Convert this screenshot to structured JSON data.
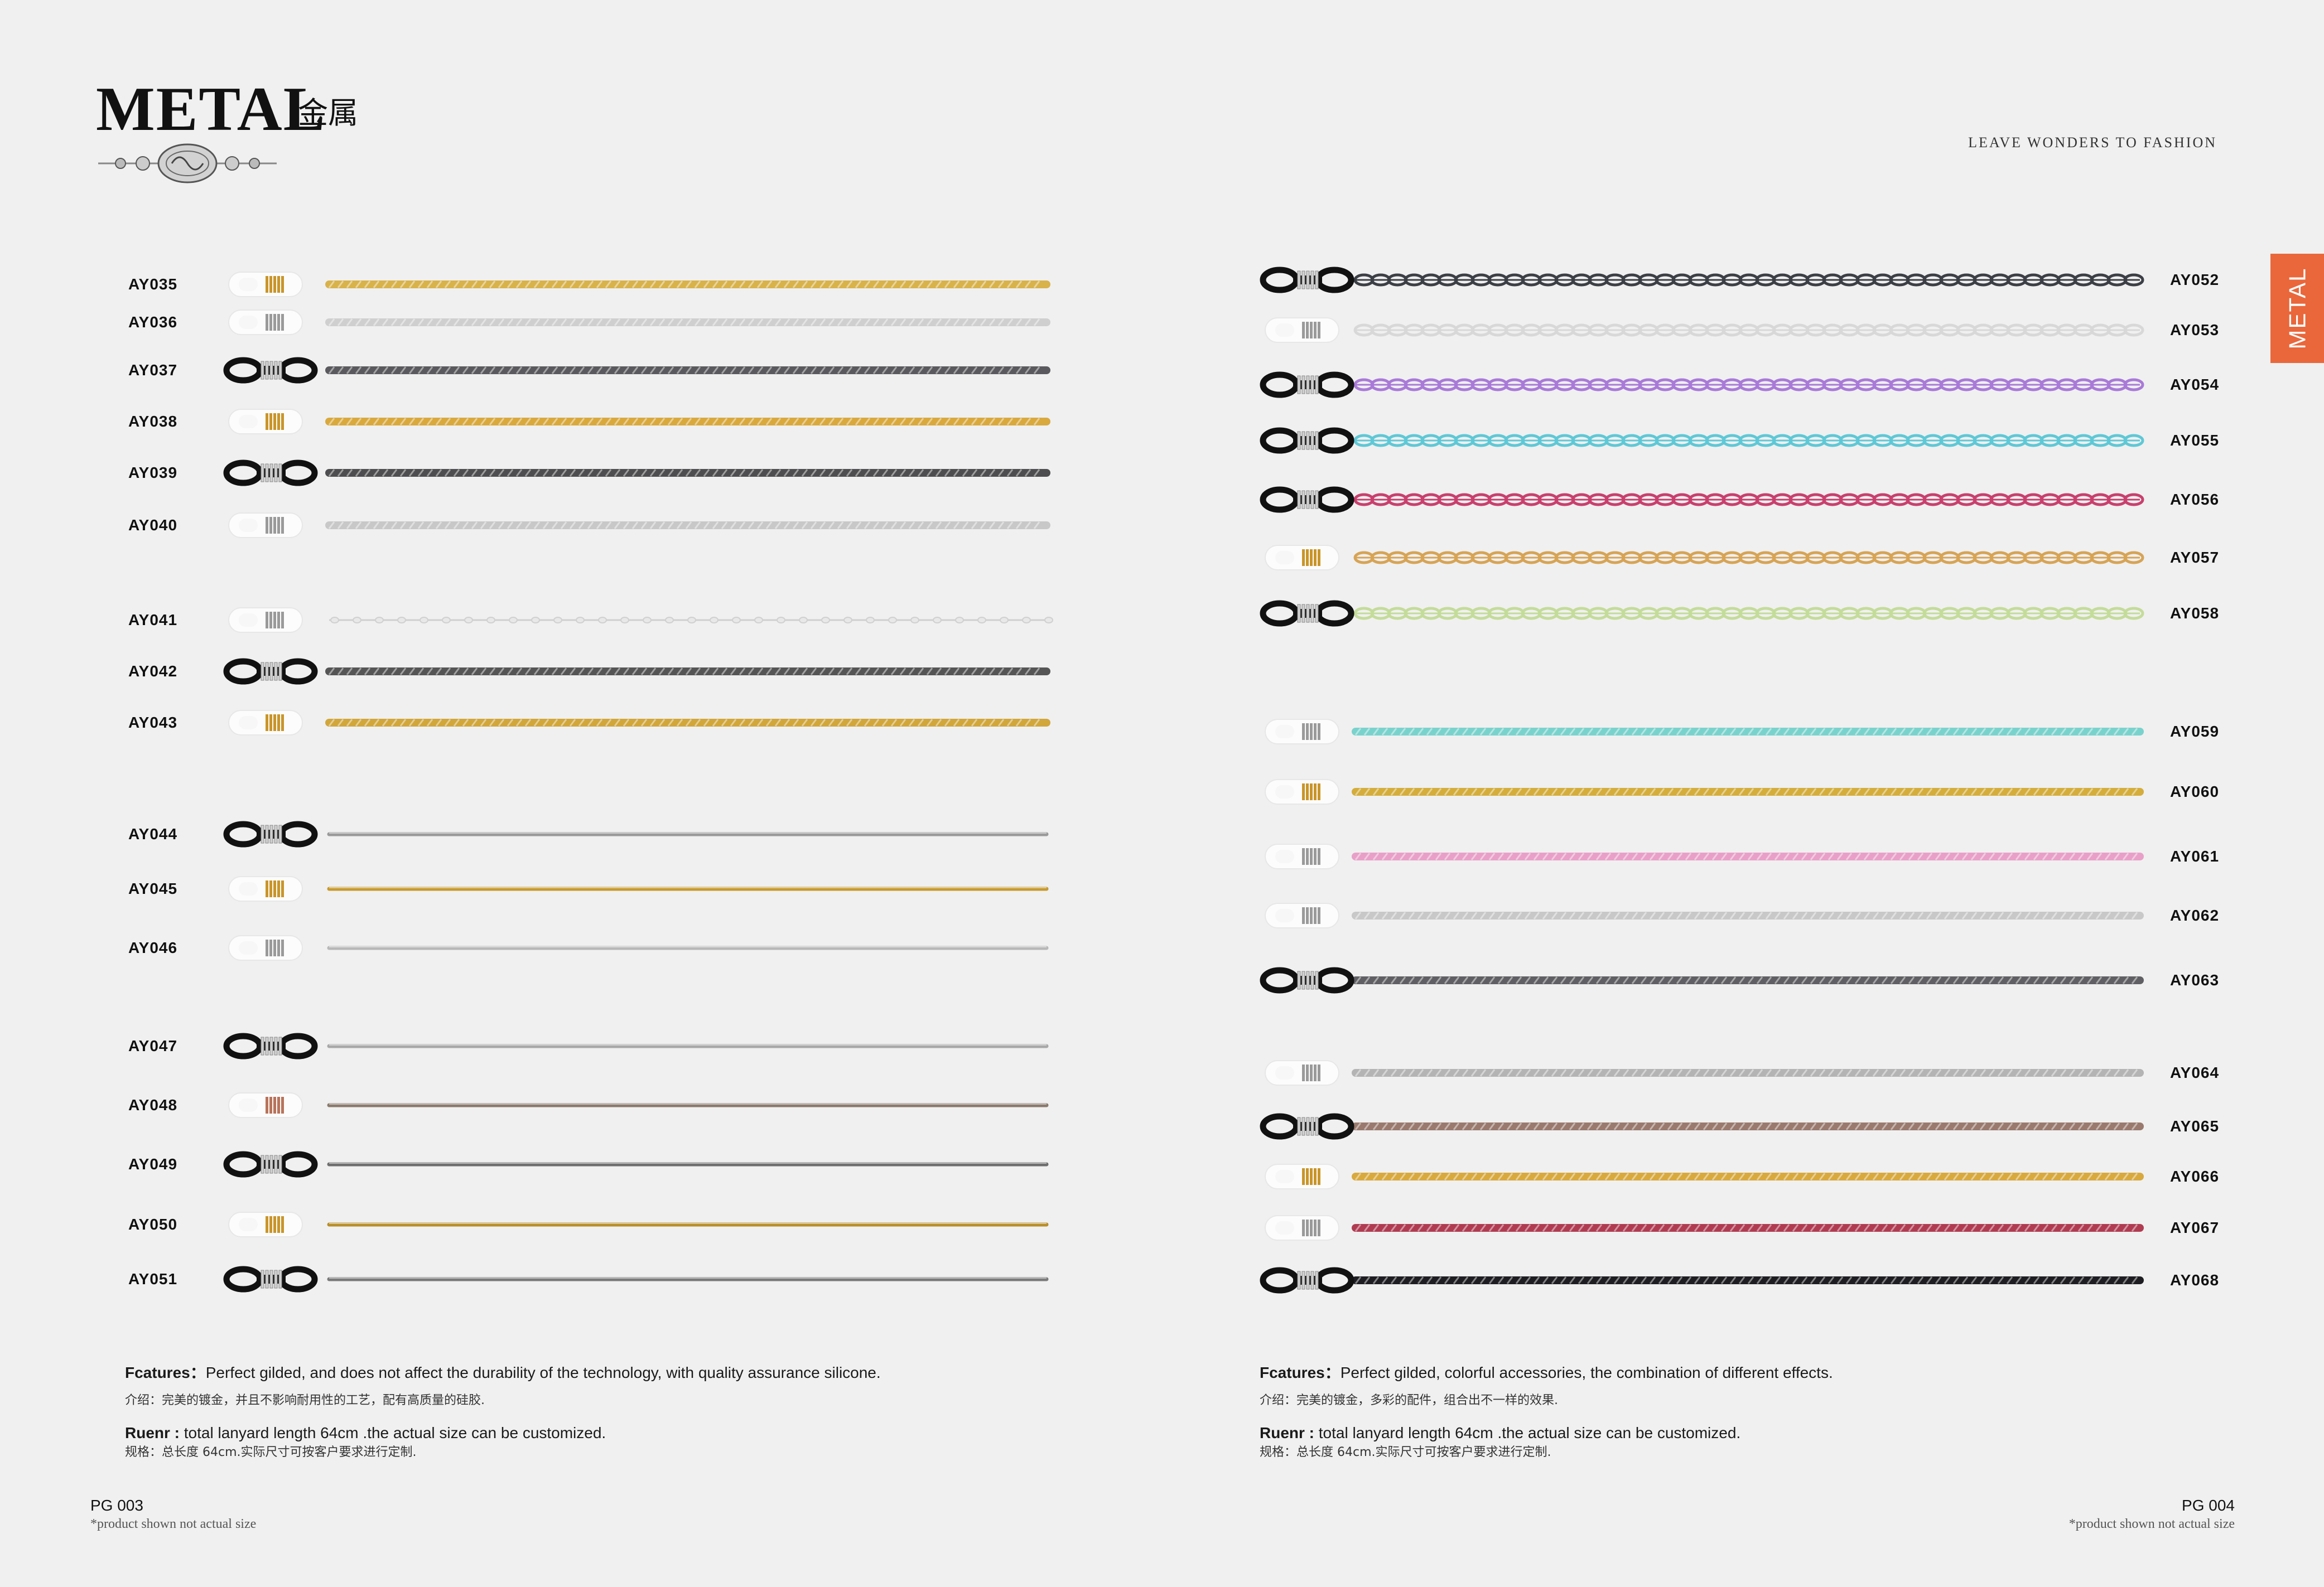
{
  "header": {
    "title": "METAL",
    "title_cn": "金属",
    "tagline": "LEAVE WONDERS TO FASHION",
    "side_tab": "METAL"
  },
  "left_page": {
    "features_label": "Fcatures",
    "features_text": "Perfect gilded, and does not affect the durability of the technology, with quality assurance silicone.",
    "intro_cn": "介绍：完美的镀金，并且不影响耐用性的工艺，配有高质量的硅胶.",
    "rule_label": "Ruenr :",
    "rule_text": "total lanyard length 64cm .the actual size can be customized.",
    "spec_cn": "规格：总长度 64cm.实际尺寸可按客户要求进行定制.",
    "page_number": "PG 003",
    "note": "*product shown not actual size",
    "items": [
      {
        "code": "AY035",
        "ear": "clear",
        "band": "gold",
        "color": "#d8b24a",
        "style": "rope"
      },
      {
        "code": "AY036",
        "ear": "clear",
        "band": "silver",
        "color": "#cfcfcf",
        "style": "rope"
      },
      {
        "code": "AY037",
        "ear": "black",
        "band": "silver",
        "color": "#5a5a5e",
        "style": "rope"
      },
      {
        "code": "AY038",
        "ear": "clear",
        "band": "gold",
        "color": "#d9a93e",
        "style": "rope"
      },
      {
        "code": "AY039",
        "ear": "black",
        "band": "silver",
        "color": "#4e4e50",
        "style": "rope"
      },
      {
        "code": "AY040",
        "ear": "clear",
        "band": "silver",
        "color": "#c8c8c8",
        "style": "rope"
      },
      {
        "code": "AY041",
        "ear": "clear",
        "band": "silver",
        "color": "#d0d0d0",
        "style": "bead"
      },
      {
        "code": "AY042",
        "ear": "black",
        "band": "silver",
        "color": "#555556",
        "style": "rope"
      },
      {
        "code": "AY043",
        "ear": "clear",
        "band": "gold",
        "color": "#d1a63b",
        "style": "rope"
      },
      {
        "code": "AY044",
        "ear": "black",
        "band": "silver",
        "color": "#9a9a9a",
        "style": "snake"
      },
      {
        "code": "AY045",
        "ear": "clear",
        "band": "gold",
        "color": "#c79a2c",
        "style": "snake"
      },
      {
        "code": "AY046",
        "ear": "clear",
        "band": "silver",
        "color": "#b8b8b8",
        "style": "snake"
      },
      {
        "code": "AY047",
        "ear": "black",
        "band": "silver",
        "color": "#a8a8a8",
        "style": "snake"
      },
      {
        "code": "AY048",
        "ear": "clear",
        "band": "rose",
        "color": "#8a7a6c",
        "style": "snake"
      },
      {
        "code": "AY049",
        "ear": "black",
        "band": "silver",
        "color": "#6e6e6e",
        "style": "snake"
      },
      {
        "code": "AY050",
        "ear": "clear",
        "band": "gold",
        "color": "#b88e28",
        "style": "snake"
      },
      {
        "code": "AY051",
        "ear": "black",
        "band": "silver",
        "color": "#7a7a7a",
        "style": "snake"
      }
    ]
  },
  "right_page": {
    "features_label": "Fcatures",
    "features_text": "Perfect gilded, colorful accessories, the combination of different effects.",
    "intro_cn": "介绍：完美的镀金，多彩的配件，组合出不一样的效果.",
    "rule_label": "Ruenr :",
    "rule_text": "total lanyard length 64cm .the actual size can be customized.",
    "spec_cn": "规格：总长度 64cm.实际尺寸可按客户要求进行定制.",
    "page_number": "PG 004",
    "note": "*product shown not actual size",
    "items": [
      {
        "code": "AY052",
        "ear": "black",
        "band": "silver",
        "color": "#3c3f45",
        "style": "link"
      },
      {
        "code": "AY053",
        "ear": "clear",
        "band": "silver",
        "color": "#d8d8d8",
        "style": "link"
      },
      {
        "code": "AY054",
        "ear": "black",
        "band": "silver",
        "color": "#a97ad8",
        "style": "link"
      },
      {
        "code": "AY055",
        "ear": "black",
        "band": "silver",
        "color": "#5fc8d6",
        "style": "link"
      },
      {
        "code": "AY056",
        "ear": "black",
        "band": "silver",
        "color": "#c8406e",
        "style": "link"
      },
      {
        "code": "AY057",
        "ear": "clear",
        "band": "gold",
        "color": "#d7a455",
        "style": "link"
      },
      {
        "code": "AY058",
        "ear": "black",
        "band": "silver",
        "color": "#c4dc9a",
        "style": "link"
      },
      {
        "code": "AY059",
        "ear": "clear",
        "band": "silver",
        "color": "#7ad2cd",
        "style": "rope"
      },
      {
        "code": "AY060",
        "ear": "clear",
        "band": "gold",
        "color": "#d4ad3c",
        "style": "rope"
      },
      {
        "code": "AY061",
        "ear": "clear",
        "band": "silver",
        "color": "#e8a0c8",
        "style": "rope"
      },
      {
        "code": "AY062",
        "ear": "clear",
        "band": "silver",
        "color": "#c8c8c8",
        "style": "rope"
      },
      {
        "code": "AY063",
        "ear": "black",
        "band": "silver",
        "color": "#606064",
        "style": "rope"
      },
      {
        "code": "AY064",
        "ear": "clear",
        "band": "silver",
        "color": "#b4b4b4",
        "style": "rope"
      },
      {
        "code": "AY065",
        "ear": "black",
        "band": "silver",
        "color": "#9a7a6e",
        "style": "rope"
      },
      {
        "code": "AY066",
        "ear": "clear",
        "band": "gold",
        "color": "#d8a93e",
        "style": "rope"
      },
      {
        "code": "AY067",
        "ear": "clear",
        "band": "silver",
        "color": "#b03c52",
        "style": "rope"
      },
      {
        "code": "AY068",
        "ear": "black",
        "band": "silver",
        "color": "#1e1e22",
        "style": "rope"
      }
    ]
  }
}
